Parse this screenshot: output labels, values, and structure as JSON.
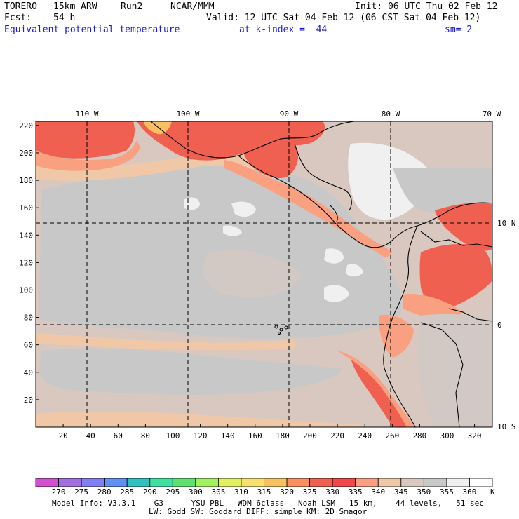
{
  "header": {
    "model": "TORERO",
    "resolution": "15km ARW",
    "run": "Run2",
    "org": "NCAR/MMM",
    "init": "Init: 06 UTC Thu 02 Feb 12",
    "fcst_label": "Fcst:",
    "fcst_hours": "54 h",
    "valid": "Valid: 12 UTC Sat 04 Feb 12 (06 CST Sat 04 Feb 12)",
    "field": "Equivalent potential temperature",
    "level": "at k-index =  44",
    "smoothing": "sm= 2"
  },
  "map": {
    "lon_labels": [
      "110 W",
      "100 W",
      "90 W",
      "80 W",
      "70 W"
    ],
    "lat_labels_right": [
      "10 N",
      "0",
      "10 S"
    ],
    "y_ticks": [
      "220",
      "200",
      "180",
      "160",
      "140",
      "120",
      "100",
      "80",
      "60",
      "40",
      "20"
    ],
    "x_ticks": [
      "20",
      "40",
      "60",
      "80",
      "100",
      "120",
      "140",
      "160",
      "180",
      "200",
      "220",
      "240",
      "260",
      "280",
      "300",
      "320"
    ]
  },
  "colorbar": {
    "unit": "K",
    "labels": [
      "270",
      "275",
      "280",
      "285",
      "290",
      "295",
      "300",
      "305",
      "310",
      "315",
      "320",
      "325",
      "330",
      "335",
      "340",
      "345",
      "350",
      "355",
      "360"
    ],
    "colors": [
      "#d050d0",
      "#a070e0",
      "#8080f0",
      "#6090f0",
      "#30c0c0",
      "#40e0a0",
      "#60e070",
      "#a0f060",
      "#e0f060",
      "#f8e070",
      "#f8c060",
      "#f89060",
      "#f06050",
      "#f04848",
      "#f8a080",
      "#f0c8a8",
      "#d8c8c0",
      "#c8c8c8",
      "#f0f0f0",
      "#ffffff"
    ]
  },
  "footer": {
    "line1": "Model Info: V3.3.1    G3      YSU PBL   WDM 6class   Noah LSM   15 km,    44 levels,   51 sec",
    "line2": "LW: Godd SW: Goddard DIFF: simple KM: 2D Smagor"
  }
}
